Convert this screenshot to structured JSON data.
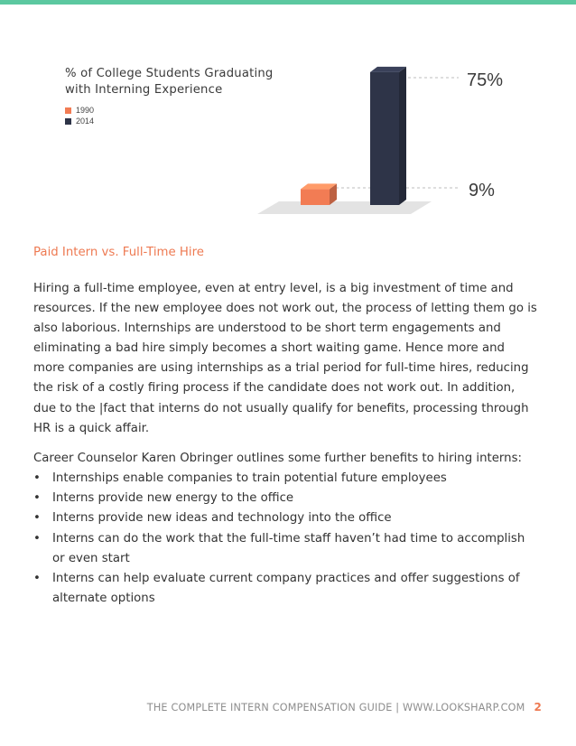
{
  "colors": {
    "accent_bar": "#5cc8a0",
    "heading": "#ee7a52",
    "series_1990": "#f27c54",
    "series_2014": "#2e3448"
  },
  "chart_data": {
    "type": "bar",
    "title": "% of College Students Graduating with Interning Experience",
    "series": [
      {
        "name": "1990",
        "values": [
          9
        ],
        "color": "#f27c54"
      },
      {
        "name": "2014",
        "values": [
          75
        ],
        "color": "#2e3448"
      }
    ],
    "value_labels": [
      "75%",
      "9%"
    ],
    "ylim": [
      0,
      80
    ],
    "legend": "top-left",
    "grid": false
  },
  "chart": {
    "title": "% of College Students Graduating with Interning Experience",
    "legend": [
      {
        "label": "1990"
      },
      {
        "label": "2014"
      }
    ],
    "labels": {
      "high": "75%",
      "low": "9%"
    }
  },
  "section": {
    "heading": "Paid Intern vs. Full-Time Hire",
    "paragraph": "Hiring a full-time employee, even at entry level, is a big investment of time and resources.  If the new employee does not work out, the process of letting them go is also laborious.  Internships are understood to be short term engagements and eliminating a bad hire simply becomes a short waiting game.  Hence more and more companies are using internships as a trial period for full-time hires, reducing the risk of a costly firing process if the candidate does not work out. In addition, due to the |fact that interns do not usually qualify for benefits, processing through HR is a quick affair.",
    "intro": "Career Counselor Karen Obringer outlines some further benefits to hiring interns:",
    "bullets": [
      "Internships enable companies to train potential future employees",
      "Interns provide new energy to the office",
      "Interns provide new ideas and technology into the office",
      "Interns can do the work that the full-time staff haven’t had time to accomplish or even start",
      "Interns can help evaluate current company practices and offer suggestions of alternate options"
    ],
    "bullet_symbol": "•"
  },
  "footer": {
    "text": "THE COMPLETE INTERN COMPENSATION GUIDE | WWW.LOOKSHARP.COM",
    "page": "2"
  }
}
